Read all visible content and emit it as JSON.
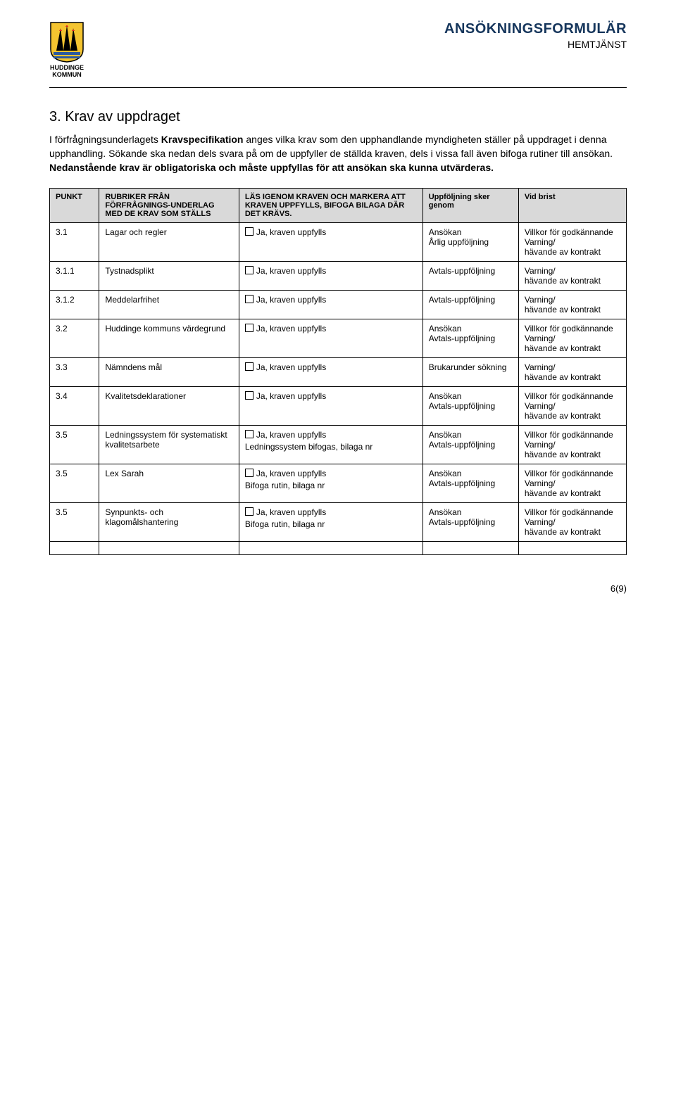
{
  "header": {
    "title": "ANSÖKNINGSFORMULÄR",
    "subtitle": "HEMTJÄNST",
    "logo_line1": "HUDDINGE",
    "logo_line2": "KOMMUN",
    "colors": {
      "title_color": "#16365c",
      "th_bg": "#d9d9d9"
    }
  },
  "section": {
    "title": "3. Krav av uppdraget",
    "para_plain_1": "I förfrågningsunderlagets ",
    "para_bold_1": "Kravspecifikation",
    "para_plain_2": " anges vilka krav som den upphandlande myndigheten ställer på uppdraget i denna upphandling. Sökande ska nedan dels svara på om de uppfyller de ställda kraven, dels i vissa fall även bifoga rutiner till ansökan.",
    "para_bold_2": "Nedanstående krav är obligatoriska och måste uppfyllas för att ansökan ska kunna utvärderas."
  },
  "table": {
    "headers": {
      "punkt": "PUNKT",
      "rubrik": "RUBRIKER FRÅN FÖRFRÅGNINGS-UNDERLAG MED DE KRAV SOM STÄLLS",
      "las": "LÄS IGENOM KRAVEN OCH MARKERA ATT KRAVEN UPPFYLLS, BIFOGA BILAGA DÄR DET KRÄVS.",
      "upp": "Uppföljning sker genom",
      "vid": "Vid brist"
    },
    "checkbox_label": "Ja, kraven uppfylls",
    "rows": [
      {
        "punkt": "3.1",
        "rubrik": "Lagar och regler",
        "las_extra": "",
        "upp": "Ansökan\nÅrlig uppföljning",
        "vid": "Villkor för godkännande\nVarning/\nhävande av kontrakt"
      },
      {
        "punkt": "3.1.1",
        "rubrik": "Tystnadsplikt",
        "las_extra": "",
        "upp": "Avtals-uppföljning",
        "vid": "Varning/\nhävande av kontrakt"
      },
      {
        "punkt": "3.1.2",
        "rubrik": "Meddelarfrihet",
        "las_extra": "",
        "upp": "Avtals-uppföljning",
        "vid": "Varning/\nhävande av kontrakt"
      },
      {
        "punkt": "3.2",
        "rubrik": "Huddinge kommuns värdegrund",
        "las_extra": "",
        "upp": "Ansökan\nAvtals-uppföljning",
        "vid": "Villkor för godkännande\nVarning/\nhävande av kontrakt"
      },
      {
        "punkt": "3.3",
        "rubrik": "Nämndens mål",
        "las_extra": "",
        "upp": "Brukarunder sökning",
        "vid": "Varning/\nhävande av kontrakt"
      },
      {
        "punkt": "3.4",
        "rubrik": "Kvalitetsdeklarationer",
        "las_extra": "",
        "upp": "Ansökan\nAvtals-uppföljning",
        "vid": "Villkor för godkännande\nVarning/\nhävande av kontrakt"
      },
      {
        "punkt": "3.5",
        "rubrik": "Ledningssystem för systematiskt kvalitetsarbete",
        "las_extra": "Ledningssystem bifogas, bilaga nr",
        "upp": "Ansökan\nAvtals-uppföljning",
        "vid": "Villkor för godkännande\nVarning/\nhävande av kontrakt"
      },
      {
        "punkt": "3.5",
        "rubrik": "Lex Sarah",
        "las_extra": "Bifoga rutin, bilaga nr",
        "upp": "Ansökan\nAvtals-uppföljning",
        "vid": "Villkor för godkännande\nVarning/\nhävande av kontrakt"
      },
      {
        "punkt": "3.5",
        "rubrik": "Synpunkts- och klagomålshantering",
        "las_extra": "Bifoga rutin, bilaga nr",
        "upp": "Ansökan\nAvtals-uppföljning",
        "vid": "Villkor för godkännande\nVarning/\nhävande av kontrakt"
      }
    ]
  },
  "footer": {
    "page": "6(9)"
  }
}
